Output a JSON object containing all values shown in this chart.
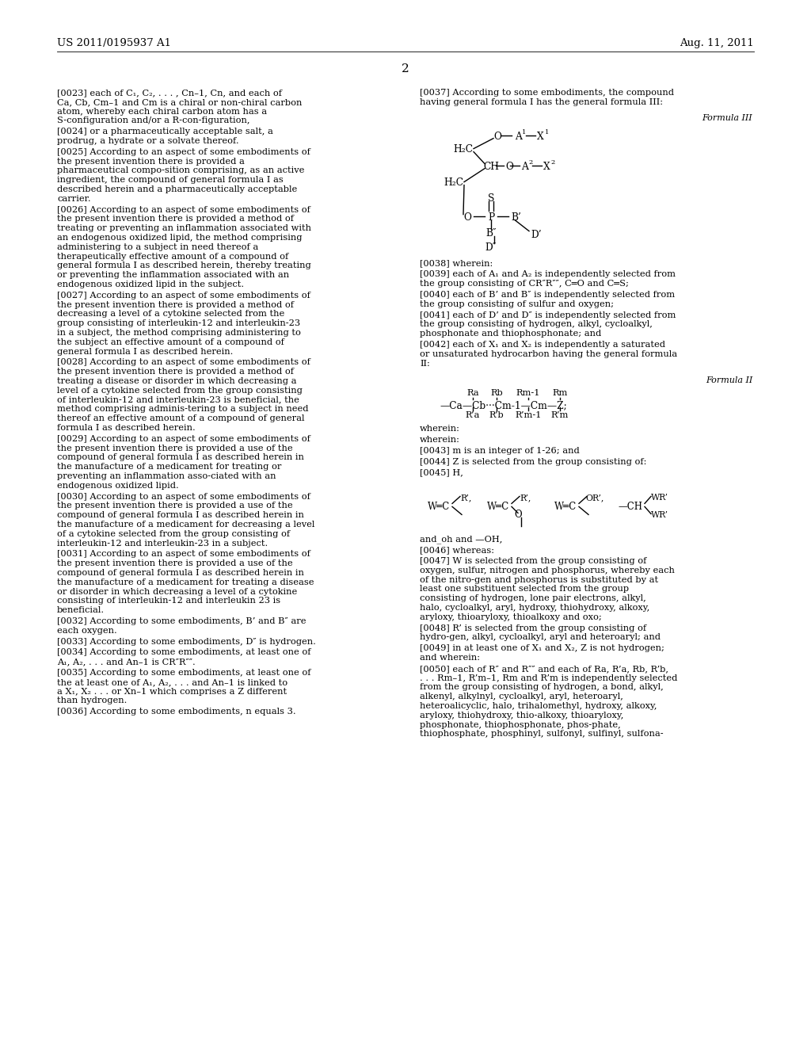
{
  "bg": "#ffffff",
  "header_left": "US 2011/0195937 A1",
  "header_right": "Aug. 11, 2011",
  "page_num": "2",
  "left_paras": [
    {
      "tag": "[0023]",
      "text": "each of C₁, C₂, . . . , Cn–1, Cn, and each of Ca, Cb, Cm–1 and Cm is a chiral or non-chiral carbon atom, whereby each chiral carbon atom has a S-configuration and/or a R-con-figuration,"
    },
    {
      "tag": "[0024]",
      "text": "or a pharmaceutically acceptable salt, a prodrug, a hydrate or a solvate thereof."
    },
    {
      "tag": "[0025]",
      "text": "According to an aspect of some embodiments of the present invention there is provided a pharmaceutical compo-sition comprising, as an active ingredient, the compound of general formula I as described herein and a pharmaceutically acceptable carrier."
    },
    {
      "tag": "[0026]",
      "text": "According to an aspect of some embodiments of the present invention there is provided a method of treating or preventing an inflammation associated with an endogenous oxidized lipid, the method comprising administering to a subject in need thereof a therapeutically effective amount of a compound of general formula I as described herein, thereby treating or preventing the inflammation associated with an endogenous oxidized lipid in the subject."
    },
    {
      "tag": "[0027]",
      "text": "According to an aspect of some embodiments of the present invention there is provided a method of decreasing a level of a cytokine selected from the group consisting of interleukin-12 and interleukin-23 in a subject, the method comprising administering to the subject an effective amount of a compound of general formula I as described herein."
    },
    {
      "tag": "[0028]",
      "text": "According to an aspect of some embodiments of the present invention there is provided a method of treating a disease or disorder in which decreasing a level of a cytokine selected from the group consisting of interleukin-12 and interleukin-23 is beneficial, the method comprising adminis-tering to a subject in need thereof an effective amount of a compound of general formula I as described herein."
    },
    {
      "tag": "[0029]",
      "text": "According to an aspect of some embodiments of the present invention there is provided a use of the compound of general formula I as described herein in the manufacture of a medicament for treating or preventing an inflammation asso-ciated with an endogenous oxidized lipid."
    },
    {
      "tag": "[0030]",
      "text": "According to an aspect of some embodiments of the present invention there is provided a use of the compound of general formula I as described herein in the manufacture of a medicament for decreasing a level of a cytokine selected from the group consisting of interleukin-12 and interleukin-23 in a subject."
    },
    {
      "tag": "[0031]",
      "text": "According to an aspect of some embodiments of the present invention there is provided a use of the compound of general formula I as described herein in the manufacture of a medicament for treating a disease or disorder in which decreasing a level of a cytokine consisting of interleukin-12 and interleukin 23 is beneficial."
    },
    {
      "tag": "[0032]",
      "text": "According to some embodiments, B’ and B″ are each oxygen."
    },
    {
      "tag": "[0033]",
      "text": "According to some embodiments, D″ is hydrogen."
    },
    {
      "tag": "[0034]",
      "text": "According to some embodiments, at least one of A₁, A₂, . . . and An–1 is CR″R″″."
    },
    {
      "tag": "[0035]",
      "text": "According to some embodiments, at least one of the at least one of A₁, A₂, . . . and An–1 is linked to a X₁, X₂ . . . or Xn–1 which comprises a Z different than hydrogen."
    },
    {
      "tag": "[0036]",
      "text": "According to some embodiments, n equals 3."
    }
  ],
  "right_paras": [
    {
      "tag": "[0037]",
      "text": "According to some embodiments, the compound having general formula I has the general formula III:"
    },
    {
      "tag": "[0038]",
      "text": "wherein:"
    },
    {
      "tag": "[0039]",
      "text": "each of A₁ and A₂ is independently selected from the group consisting of CR″R″″, C═O and C═S;"
    },
    {
      "tag": "[0040]",
      "text": "each of B’ and B″ is independently selected from the group consisting of sulfur and oxygen;"
    },
    {
      "tag": "[0041]",
      "text": "each of D’ and D″ is independently selected from the group consisting of hydrogen, alkyl, cycloalkyl, phosphonate and thiophosphonate; and"
    },
    {
      "tag": "[0042]",
      "text": "each of X₁ and X₂ is independently a saturated or unsaturated hydrocarbon having the general formula II:"
    },
    {
      "tag": "wherein:",
      "text": ""
    },
    {
      "tag": "[0043]",
      "text": "m is an integer of 1-26; and"
    },
    {
      "tag": "[0044]",
      "text": "Z is selected from the group consisting of:"
    },
    {
      "tag": "[0045]",
      "text": "H,"
    },
    {
      "tag": "and_oh",
      "text": "and —OH,"
    },
    {
      "tag": "[0046]",
      "text": "whereas:"
    },
    {
      "tag": "[0047]",
      "text": "W is selected from the group consisting of oxygen, sulfur, nitrogen and phosphorus, whereby each of the nitro-gen and phosphorus is substituted by at least one substituent selected from the group consisting of hydrogen, lone pair electrons, alkyl, halo, cycloalkyl, aryl, hydroxy, thiohydroxy, alkoxy, aryloxy, thioaryloxy, thioalkoxy and oxo;"
    },
    {
      "tag": "[0048]",
      "text": "R’ is selected from the group consisting of hydro-gen, alkyl, cycloalkyl, aryl and heteroaryl; and"
    },
    {
      "tag": "[0049]",
      "text": "in at least one of X₁ and X₂, Z is not hydrogen; and wherein:"
    },
    {
      "tag": "[0050]",
      "text": "each of R″ and R″″ and each of Ra, R’a, Rb, R’b, . . . Rm–1, R’m–1, Rm and R’m is independently selected from the group consisting of hydrogen, a bond, alkyl, alkenyl, alkylnyl, cycloalkyl, aryl, heteroaryl, heteroalicyclic, halo, trihalomethyl, hydroxy, alkoxy, aryloxy, thiohydroxy, thio-alkoxy, thioaryloxy, phosphonate, thiophosphonate, phos-phate, thiophosphate, phosphinyl, sulfonyl, sulfinyl, sulfona-"
    }
  ]
}
